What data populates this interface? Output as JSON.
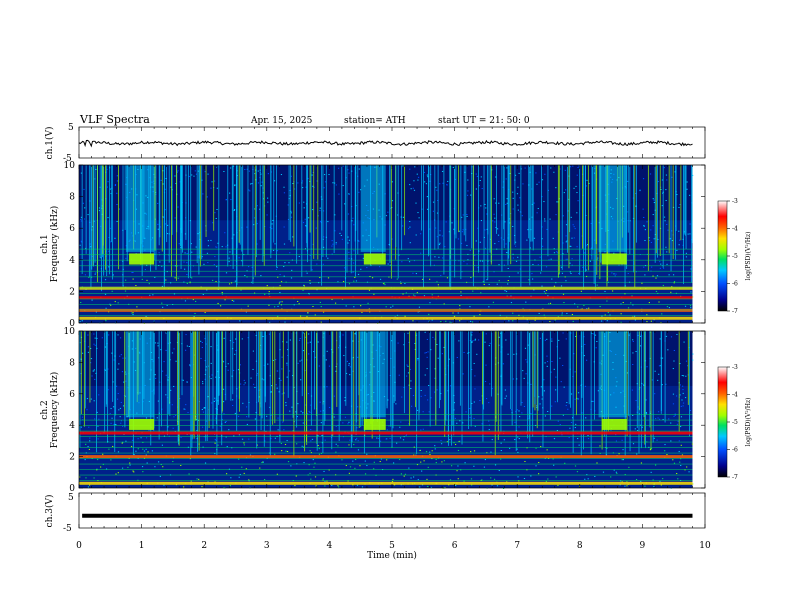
{
  "header": {
    "title": "VLF  Spectra",
    "date": "Apr. 15, 2025",
    "station": "station= ATH",
    "start": "start  UT  =   21: 50: 0"
  },
  "colors": {
    "spectrogram_background": "#00208a",
    "colormap": [
      "#000000",
      "#00008b",
      "#0050ff",
      "#00c8ff",
      "#00e060",
      "#a0ff00",
      "#ffe000",
      "#ff6000",
      "#ff0000",
      "#ffffff"
    ]
  },
  "chart_data": [
    {
      "id": "ch1_waveform",
      "type": "line",
      "ylabel": "ch.1(V)",
      "ylim": [
        -5,
        5
      ],
      "y_ticks": [
        "5",
        "-5"
      ],
      "xlim": [
        0,
        10
      ],
      "description_level_V": -0.2
    },
    {
      "id": "ch1_spectrogram",
      "type": "heatmap",
      "ylabel": "ch.1\nFrequency (kHz)",
      "ylabel_lines": [
        "ch.1",
        "Frequency (kHz)"
      ],
      "ylim": [
        0,
        10
      ],
      "y_ticks": [
        "0",
        "2",
        "4",
        "6",
        "8",
        "10"
      ],
      "xlim": [
        0,
        10
      ],
      "colorbar": {
        "label": "log(PSD)(V²/Hz)",
        "range": [
          -7,
          -3
        ],
        "ticks": [
          "-3",
          "-4",
          "-5",
          "-6",
          "-7"
        ]
      },
      "bursts_min": [
        [
          0.75,
          1.2
        ],
        [
          4.5,
          4.9
        ],
        [
          8.3,
          8.75
        ]
      ],
      "burst_band_kHz": [
        3.7,
        4.4
      ],
      "strong_bands_kHz": [
        0.3,
        0.8,
        1.6,
        2.2
      ]
    },
    {
      "id": "ch2_spectrogram",
      "type": "heatmap",
      "ylabel": "ch.2\nFrequency (kHz)",
      "ylabel_lines": [
        "ch.2",
        "Frequency (kHz)"
      ],
      "ylim": [
        0,
        10
      ],
      "y_ticks": [
        "0",
        "2",
        "4",
        "6",
        "8",
        "10"
      ],
      "xlim": [
        0,
        10
      ],
      "colorbar": {
        "label": "log(PSD)(V²/Hz)",
        "range": [
          -7,
          -3
        ],
        "ticks": [
          "-3",
          "-4",
          "-5",
          "-6",
          "-7"
        ]
      },
      "bursts_min": [
        [
          0.75,
          1.2
        ],
        [
          4.5,
          4.9
        ],
        [
          8.3,
          8.75
        ]
      ],
      "burst_band_kHz": [
        3.7,
        4.4
      ],
      "strong_bands_kHz": [
        0.3,
        2.0,
        3.5
      ]
    },
    {
      "id": "ch3_waveform",
      "type": "line",
      "ylabel": "ch.3(V)",
      "ylim": [
        -5,
        5
      ],
      "y_ticks": [
        "5",
        "-5"
      ],
      "xlim": [
        0,
        10
      ],
      "description_level_V": -1.5
    }
  ],
  "x_axis": {
    "label": "Time  (min)",
    "ticks": [
      "0",
      "1",
      "2",
      "3",
      "4",
      "5",
      "6",
      "7",
      "8",
      "9",
      "10"
    ],
    "data_end_min": 9.8
  }
}
